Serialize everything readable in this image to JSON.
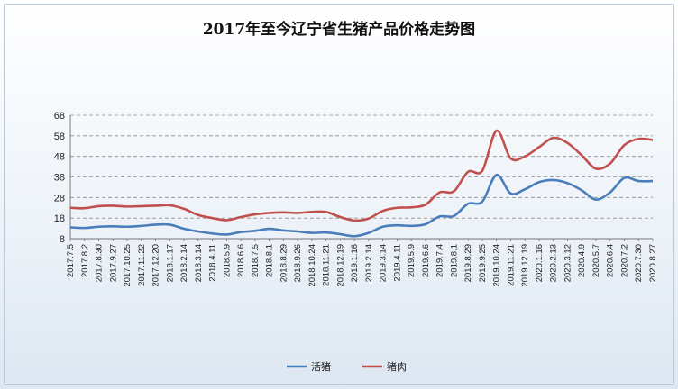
{
  "title": "2017年至今辽宁省生猪产品价格走势图",
  "chart_data": {
    "type": "line",
    "title": "2017年至今辽宁省生猪产品价格走势图",
    "xlabel": "",
    "ylabel": "",
    "ylim": [
      8,
      68
    ],
    "yticks": [
      8,
      18,
      28,
      38,
      48,
      58,
      68
    ],
    "grid": true,
    "legend_position": "bottom",
    "categories": [
      "2017.7.5",
      "2017.8.2",
      "2017.8.30",
      "2017.9.27",
      "2017.10.25",
      "2017.11.22",
      "2017.12.20",
      "2018.1.17",
      "2018.2.14",
      "2018.3.14",
      "2018.4.11",
      "2018.5.9",
      "2018.6.6",
      "2018.7.5",
      "2018.8.1",
      "2018.8.29",
      "2018.9.26",
      "2018.10.24",
      "2018.11.21",
      "2018.12.19",
      "2019.1.16",
      "2019.2.14",
      "2019.3.14",
      "2019.4.11",
      "2019.5.9",
      "2019.6.6",
      "2019.7.4",
      "2019.8.1",
      "2019.8.29",
      "2019.9.25",
      "2019.10.24",
      "2019.11.21",
      "2019.12.19",
      "2020.1.16",
      "2020.2.13",
      "2020.3.12",
      "2020.4.9",
      "2020.5.7",
      "2020.6.4",
      "2020.7.2",
      "2020.7.30",
      "2020.8.27"
    ],
    "series": [
      {
        "name": "活猪",
        "color": "#4a7ebb",
        "values": [
          13.5,
          13.2,
          13.8,
          14.0,
          13.8,
          14.2,
          14.8,
          14.8,
          12.8,
          11.5,
          10.5,
          10.0,
          11.2,
          11.8,
          12.8,
          12.0,
          11.5,
          10.8,
          11.0,
          10.2,
          9.2,
          10.8,
          13.8,
          14.5,
          14.2,
          15.0,
          18.8,
          19.0,
          25.0,
          26.0,
          39.0,
          30.0,
          32.0,
          35.5,
          36.5,
          35.0,
          31.5,
          27.0,
          30.5,
          37.5,
          36.0,
          36.0
        ]
      },
      {
        "name": "猪肉",
        "color": "#c0504d",
        "values": [
          23.0,
          22.8,
          23.8,
          24.0,
          23.6,
          23.8,
          24.0,
          24.2,
          22.5,
          19.5,
          18.0,
          17.0,
          18.5,
          19.8,
          20.5,
          20.8,
          20.5,
          21.0,
          21.0,
          18.5,
          16.8,
          17.8,
          21.5,
          23.0,
          23.2,
          24.5,
          30.5,
          31.0,
          40.5,
          41.0,
          60.5,
          47.0,
          48.0,
          52.5,
          57.0,
          54.5,
          48.5,
          42.0,
          44.5,
          53.5,
          56.5,
          56.0
        ]
      }
    ]
  }
}
